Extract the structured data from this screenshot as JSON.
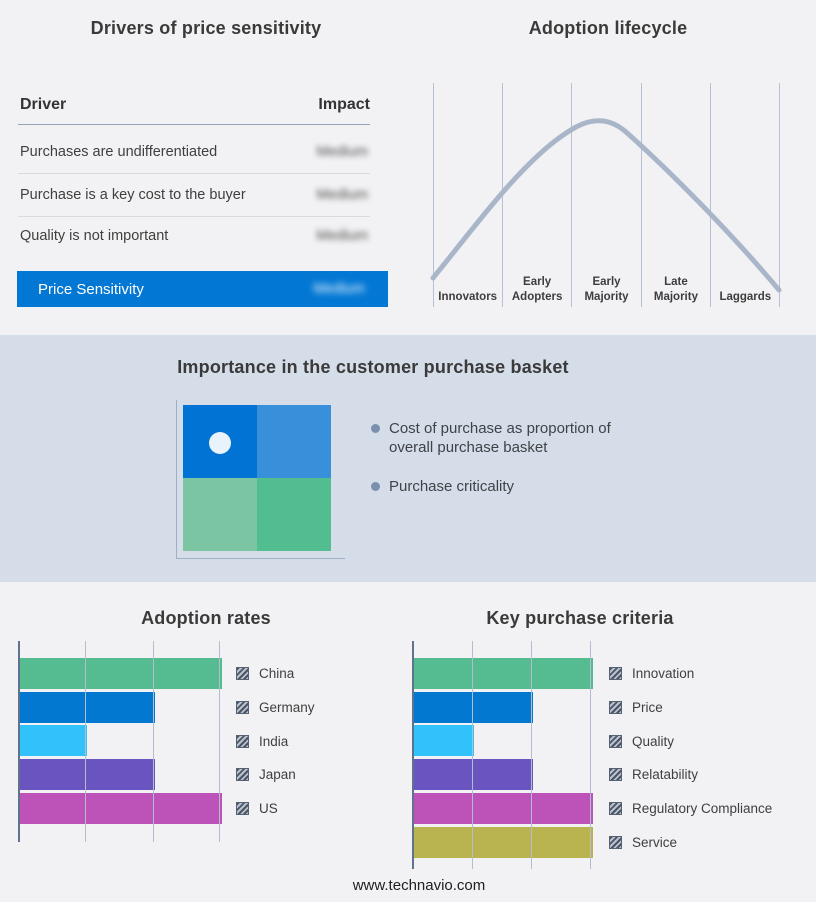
{
  "page": {
    "background": "#f2f2f4",
    "band_background": "#d5dde9",
    "footer_text": "www.technavio.com"
  },
  "price_sensitivity": {
    "title": "Drivers of price sensitivity",
    "columns": {
      "driver": "Driver",
      "impact": "Impact"
    },
    "rows": [
      {
        "driver": "Purchases are undifferentiated",
        "impact": "Medium"
      },
      {
        "driver": "Purchase is a key cost to the buyer",
        "impact": "Medium"
      },
      {
        "driver": "Quality is not important",
        "impact": "Medium"
      }
    ],
    "summary": {
      "driver": "Price Sensitivity",
      "impact": "Medium",
      "highlight_color": "#0277d4"
    },
    "impact_values_blurred": true
  },
  "adoption_lifecycle": {
    "title": "Adoption lifecycle",
    "stages": [
      "Innovators",
      "Early Adopters",
      "Early Majority",
      "Late Majority",
      "Laggards"
    ],
    "curve_color": "#a9b6ca",
    "gridline_color": "#b5c0d4"
  },
  "purchase_basket": {
    "title": "Importance in the customer purchase basket",
    "bullets": [
      "Cost of purchase as proportion of overall purchase basket",
      "Purchase criticality"
    ],
    "quadrant_colors": {
      "top_left": "#0173d4",
      "top_right": "#3990da",
      "bottom_left": "#7cc5a2",
      "bottom_right": "#52bd8e"
    },
    "marker": "white dot in top-left quadrant"
  },
  "chart_data": [
    {
      "type": "bar",
      "orientation": "horizontal",
      "title": "Adoption rates",
      "categories": [
        "China",
        "Germany",
        "India",
        "Japan",
        "US"
      ],
      "values": [
        3,
        2,
        1,
        2,
        3
      ],
      "xlim": [
        0,
        3
      ],
      "xlabel": "",
      "ylabel": "",
      "grid": true,
      "legend_position": "right",
      "colors": [
        "#55bb90",
        "#0378d0",
        "#31c1fb",
        "#6a54bf",
        "#bd52b8"
      ]
    },
    {
      "type": "bar",
      "orientation": "horizontal",
      "title": "Key purchase criteria",
      "categories": [
        "Innovation",
        "Price",
        "Quality",
        "Relatability",
        "Regulatory Compliance",
        "Service"
      ],
      "values": [
        3,
        2,
        1,
        2,
        3,
        3
      ],
      "xlim": [
        0,
        3
      ],
      "xlabel": "",
      "ylabel": "",
      "grid": true,
      "legend_position": "right",
      "colors": [
        "#55bb90",
        "#0378d0",
        "#31c1fb",
        "#6a54bf",
        "#bd52b8",
        "#b9b44f"
      ]
    },
    {
      "type": "line",
      "title": "Adoption lifecycle",
      "x": [
        "Innovators",
        "Early Adopters",
        "Early Majority",
        "Late Majority",
        "Laggards"
      ],
      "shape": "bell curve rising from Innovators, peaking in Early Majority, falling to Laggards",
      "color": "#a9b6ca"
    }
  ]
}
